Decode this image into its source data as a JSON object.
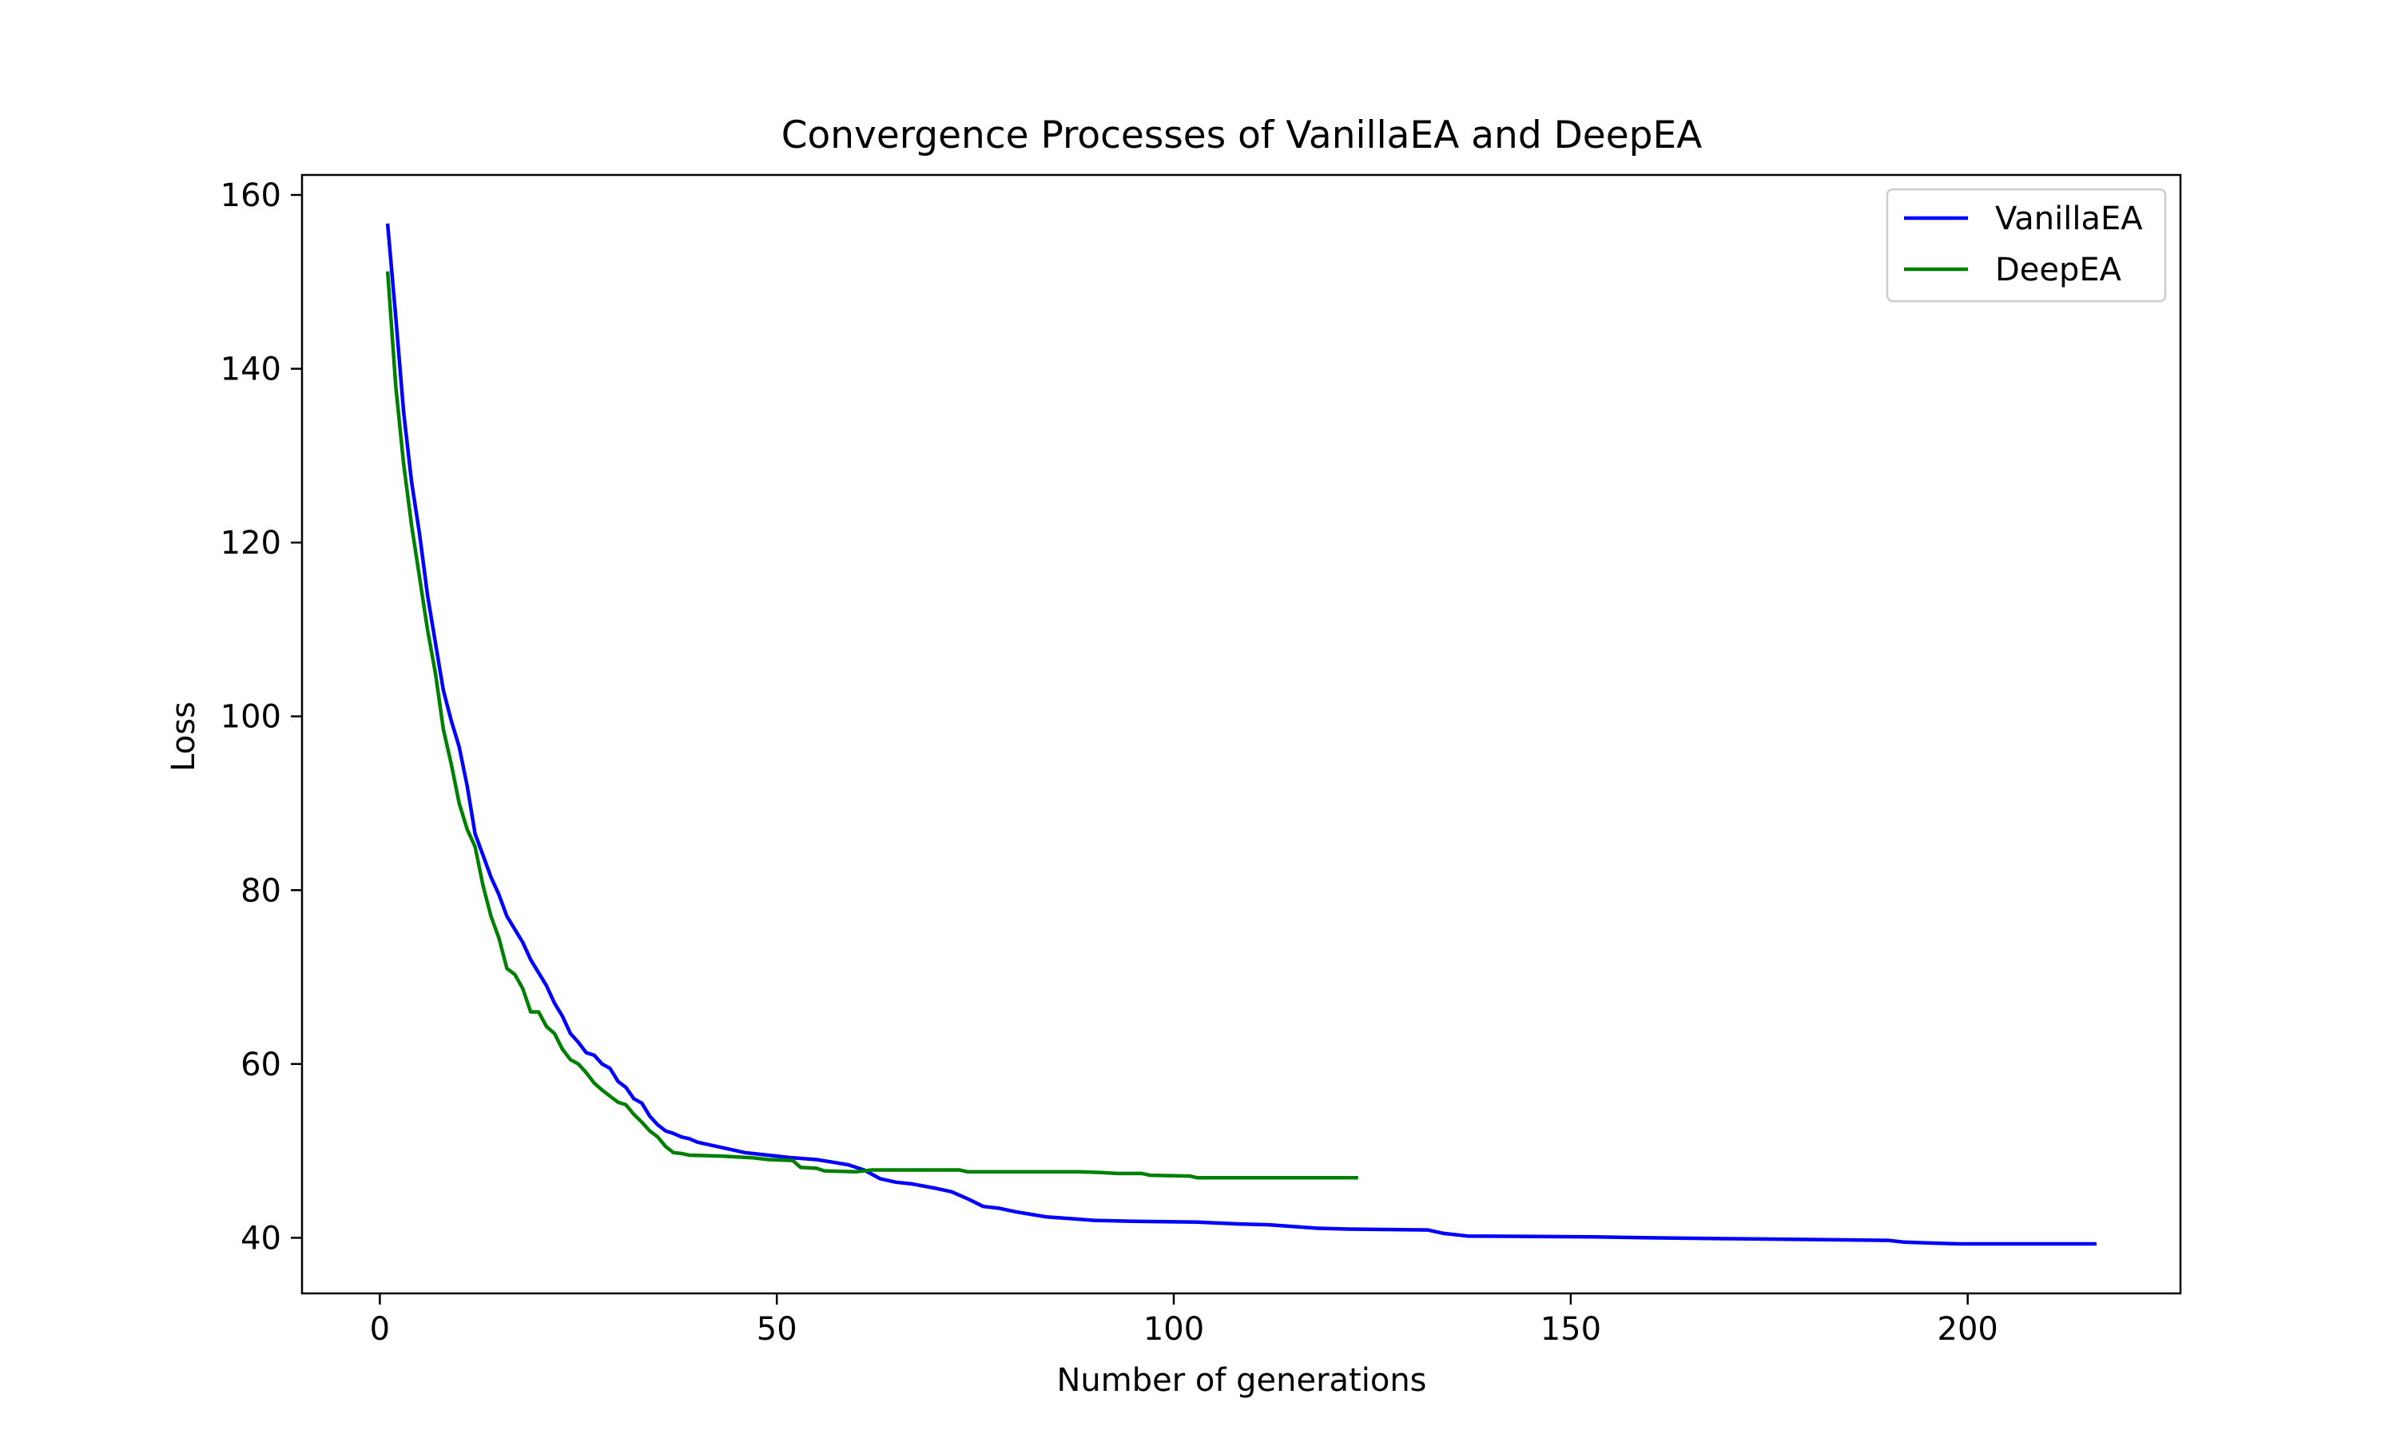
{
  "chart_data": {
    "type": "line",
    "title": "Convergence Processes of VanillaEA and DeepEA",
    "xlabel": "Number of generations",
    "ylabel": "Loss",
    "xlim": [
      -9.8,
      226.8
    ],
    "ylim": [
      33.6,
      162.3
    ],
    "xticks": [
      0,
      50,
      100,
      150,
      200
    ],
    "yticks": [
      40,
      60,
      80,
      100,
      120,
      140,
      160
    ],
    "grid": false,
    "legend_position": "top-right",
    "series": [
      {
        "name": "VanillaEA",
        "color": "#0000ff",
        "points": [
          [
            1,
            156.5
          ],
          [
            2,
            146
          ],
          [
            3,
            135
          ],
          [
            4,
            127
          ],
          [
            5,
            121
          ],
          [
            6,
            114
          ],
          [
            7,
            108.5
          ],
          [
            8,
            103
          ],
          [
            9,
            99.5
          ],
          [
            10,
            96.5
          ],
          [
            11,
            92
          ],
          [
            12,
            86.5
          ],
          [
            13,
            84
          ],
          [
            14,
            81.5
          ],
          [
            15,
            79.5
          ],
          [
            16,
            77
          ],
          [
            17,
            75.5
          ],
          [
            18,
            74
          ],
          [
            19,
            72
          ],
          [
            20,
            70.5
          ],
          [
            21,
            69
          ],
          [
            22,
            67
          ],
          [
            23,
            65.5
          ],
          [
            24,
            63.5
          ],
          [
            25,
            62.5
          ],
          [
            26,
            61.3
          ],
          [
            27,
            61
          ],
          [
            28,
            60
          ],
          [
            29,
            59.5
          ],
          [
            30,
            58
          ],
          [
            31,
            57.3
          ],
          [
            32,
            56
          ],
          [
            33,
            55.5
          ],
          [
            34,
            54
          ],
          [
            35,
            53
          ],
          [
            36,
            52.3
          ],
          [
            37,
            52
          ],
          [
            38,
            51.6
          ],
          [
            39,
            51.4
          ],
          [
            40,
            51
          ],
          [
            42,
            50.6
          ],
          [
            44,
            50.2
          ],
          [
            46,
            49.8
          ],
          [
            48,
            49.6
          ],
          [
            50,
            49.4
          ],
          [
            52,
            49.2
          ],
          [
            55,
            49
          ],
          [
            57,
            48.7
          ],
          [
            59,
            48.4
          ],
          [
            61,
            47.8
          ],
          [
            63,
            46.8
          ],
          [
            65,
            46.4
          ],
          [
            67,
            46.2
          ],
          [
            70,
            45.7
          ],
          [
            72,
            45.3
          ],
          [
            74,
            44.5
          ],
          [
            76,
            43.6
          ],
          [
            78,
            43.4
          ],
          [
            80,
            43
          ],
          [
            82,
            42.7
          ],
          [
            84,
            42.4
          ],
          [
            87,
            42.2
          ],
          [
            90,
            42
          ],
          [
            95,
            41.9
          ],
          [
            103,
            41.8
          ],
          [
            108,
            41.6
          ],
          [
            112,
            41.5
          ],
          [
            115,
            41.3
          ],
          [
            118,
            41.1
          ],
          [
            122,
            41
          ],
          [
            132,
            40.9
          ],
          [
            134,
            40.5
          ],
          [
            137,
            40.2
          ],
          [
            153,
            40.1
          ],
          [
            160,
            40
          ],
          [
            170,
            39.9
          ],
          [
            181,
            39.8
          ],
          [
            190,
            39.7
          ],
          [
            192,
            39.5
          ],
          [
            195,
            39.4
          ],
          [
            199,
            39.3
          ],
          [
            216,
            39.3
          ]
        ]
      },
      {
        "name": "DeepEA",
        "color": "#008000",
        "points": [
          [
            1,
            151
          ],
          [
            2,
            138
          ],
          [
            3,
            129
          ],
          [
            4,
            122
          ],
          [
            5,
            116
          ],
          [
            6,
            110
          ],
          [
            7,
            105
          ],
          [
            8,
            98.5
          ],
          [
            9,
            94.5
          ],
          [
            10,
            90
          ],
          [
            11,
            87
          ],
          [
            12,
            85
          ],
          [
            13,
            80.5
          ],
          [
            14,
            77
          ],
          [
            15,
            74.5
          ],
          [
            16,
            71
          ],
          [
            17,
            70.3
          ],
          [
            18,
            68.7
          ],
          [
            19,
            66
          ],
          [
            20,
            66
          ],
          [
            21,
            64.3
          ],
          [
            22,
            63.5
          ],
          [
            23,
            61.7
          ],
          [
            24,
            60.5
          ],
          [
            25,
            60
          ],
          [
            26,
            59
          ],
          [
            27,
            57.8
          ],
          [
            28,
            57
          ],
          [
            29,
            56.3
          ],
          [
            30,
            55.6
          ],
          [
            31,
            55.3
          ],
          [
            32,
            54.2
          ],
          [
            33,
            53.3
          ],
          [
            34,
            52.3
          ],
          [
            35,
            51.6
          ],
          [
            36,
            50.5
          ],
          [
            37,
            49.8
          ],
          [
            38,
            49.7
          ],
          [
            39,
            49.5
          ],
          [
            43,
            49.4
          ],
          [
            47,
            49.2
          ],
          [
            49,
            49
          ],
          [
            52,
            48.9
          ],
          [
            53,
            48.1
          ],
          [
            55,
            48
          ],
          [
            56,
            47.7
          ],
          [
            60,
            47.6
          ],
          [
            62,
            47.8
          ],
          [
            73,
            47.8
          ],
          [
            74,
            47.6
          ],
          [
            88,
            47.6
          ],
          [
            91,
            47.5
          ],
          [
            93,
            47.4
          ],
          [
            96,
            47.4
          ],
          [
            97,
            47.2
          ],
          [
            102,
            47.1
          ],
          [
            103,
            46.9
          ],
          [
            123,
            46.9
          ]
        ]
      }
    ]
  }
}
